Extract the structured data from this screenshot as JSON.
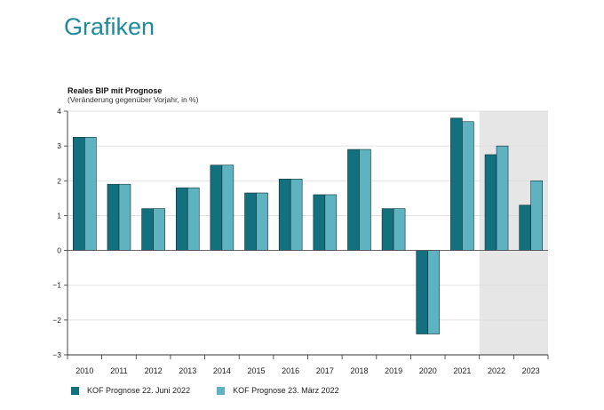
{
  "page": {
    "heading": "Grafiken"
  },
  "chart_data": {
    "type": "bar",
    "title": "Reales BIP mit Prognose",
    "subtitle": "(Veränderung gegenüber Vorjahr, in %)",
    "xlabel": "",
    "ylabel": "",
    "ylim": [
      -3,
      4
    ],
    "yticks": [
      4,
      3,
      2,
      1,
      0,
      -1,
      -2,
      -3
    ],
    "ytick_labels": [
      "4",
      "3",
      "2",
      "1",
      "0",
      "−1",
      "−2",
      "−3"
    ],
    "grid": true,
    "legend_position": "bottom-left",
    "forecast_shaded_categories": [
      "2022",
      "2023"
    ],
    "categories": [
      "2010",
      "2011",
      "2012",
      "2013",
      "2014",
      "2015",
      "2016",
      "2017",
      "2018",
      "2019",
      "2020",
      "2021",
      "2022",
      "2023"
    ],
    "series": [
      {
        "name": "KOF Prognose 22. Juni 2022",
        "color": "#12707f",
        "values": [
          3.25,
          1.9,
          1.2,
          1.8,
          2.45,
          1.65,
          2.05,
          1.6,
          2.9,
          1.2,
          -2.4,
          3.8,
          2.75,
          1.3
        ]
      },
      {
        "name": "KOF Prognose 23. März 2022",
        "color": "#5fb3c0",
        "values": [
          3.25,
          1.9,
          1.2,
          1.8,
          2.45,
          1.65,
          2.05,
          1.6,
          2.9,
          1.2,
          -2.4,
          3.7,
          3.0,
          2.0
        ]
      }
    ],
    "colors": {
      "shade": "#e6e6e6",
      "grid": "#d9d9d9",
      "axis": "#333333",
      "zero_line": "#555555"
    }
  }
}
